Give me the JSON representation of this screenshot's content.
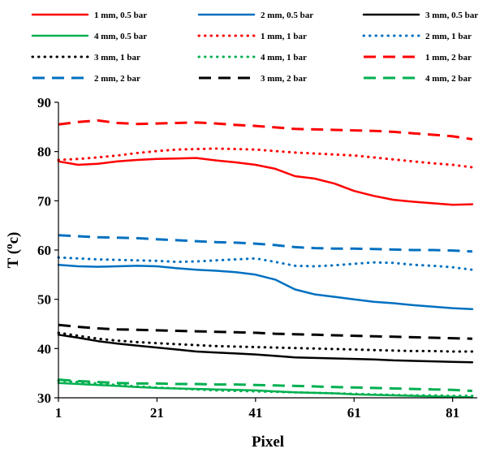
{
  "chart_data": {
    "type": "line",
    "title": "",
    "xlabel": "Pixel",
    "ylabel": "T (°c)",
    "ylabel_parts": {
      "prefix": "T (",
      "sup": "o",
      "suffix": "c)"
    },
    "xlim": [
      1,
      86
    ],
    "ylim": [
      30,
      90
    ],
    "xticks": [
      1,
      21,
      41,
      61,
      81
    ],
    "yticks": [
      30,
      40,
      50,
      60,
      70,
      80,
      90
    ],
    "legend_placement": "top",
    "grid": false,
    "series": [
      {
        "name": "1 mm, 0.5 bar",
        "color": "#ff0000",
        "style": "solid",
        "x": [
          1,
          5,
          9,
          13,
          17,
          21,
          25,
          29,
          33,
          37,
          41,
          45,
          49,
          53,
          57,
          61,
          65,
          69,
          73,
          77,
          81,
          85
        ],
        "y": [
          78,
          77.3,
          77.5,
          78,
          78.3,
          78.5,
          78.6,
          78.7,
          78.2,
          77.8,
          77.3,
          76.5,
          75,
          74.5,
          73.5,
          72,
          71,
          70.2,
          69.8,
          69.5,
          69.2,
          69.3
        ]
      },
      {
        "name": "2 mm, 0.5 bar",
        "color": "#0070c0",
        "style": "solid",
        "x": [
          1,
          5,
          9,
          13,
          17,
          21,
          25,
          29,
          33,
          37,
          41,
          45,
          49,
          53,
          57,
          61,
          65,
          69,
          73,
          77,
          81,
          85
        ],
        "y": [
          57,
          56.7,
          56.6,
          56.7,
          56.8,
          56.7,
          56.3,
          56,
          55.8,
          55.5,
          55,
          54,
          52,
          51,
          50.5,
          50,
          49.5,
          49.2,
          48.8,
          48.5,
          48.2,
          48
        ]
      },
      {
        "name": "3 mm, 0.5 bar",
        "color": "#000000",
        "style": "solid",
        "x": [
          1,
          5,
          9,
          13,
          17,
          21,
          25,
          29,
          33,
          37,
          41,
          45,
          49,
          53,
          57,
          61,
          65,
          69,
          73,
          77,
          81,
          85
        ],
        "y": [
          42.8,
          42.2,
          41.5,
          41,
          40.6,
          40.2,
          39.8,
          39.4,
          39.2,
          39,
          38.8,
          38.5,
          38.2,
          38.1,
          38,
          37.9,
          37.8,
          37.6,
          37.5,
          37.4,
          37.3,
          37.2
        ]
      },
      {
        "name": "4 mm, 0.5 bar",
        "color": "#00b050",
        "style": "solid",
        "x": [
          1,
          5,
          9,
          13,
          17,
          21,
          25,
          29,
          33,
          37,
          41,
          45,
          49,
          53,
          57,
          61,
          65,
          69,
          73,
          77,
          81,
          85
        ],
        "y": [
          33,
          32.8,
          32.6,
          32.4,
          32.2,
          32,
          31.9,
          31.8,
          31.7,
          31.6,
          31.5,
          31.3,
          31.1,
          31,
          30.9,
          30.7,
          30.6,
          30.5,
          30.4,
          30.3,
          30.2,
          30.1
        ]
      },
      {
        "name": "1 mm, 1 bar",
        "color": "#ff0000",
        "style": "dotted",
        "x": [
          1,
          5,
          9,
          13,
          17,
          21,
          25,
          29,
          33,
          37,
          41,
          45,
          49,
          53,
          57,
          61,
          65,
          69,
          73,
          77,
          81,
          85
        ],
        "y": [
          78.3,
          78.5,
          78.8,
          79.2,
          79.7,
          80.1,
          80.4,
          80.5,
          80.6,
          80.5,
          80.4,
          80.1,
          79.8,
          79.6,
          79.4,
          79.2,
          78.8,
          78.4,
          78,
          77.6,
          77.3,
          76.8
        ]
      },
      {
        "name": "2 mm, 1 bar",
        "color": "#0070c0",
        "style": "dotted",
        "x": [
          1,
          5,
          9,
          13,
          17,
          21,
          25,
          29,
          33,
          37,
          41,
          45,
          49,
          53,
          57,
          61,
          65,
          69,
          73,
          77,
          81,
          85
        ],
        "y": [
          58.5,
          58.3,
          58.1,
          58,
          57.9,
          57.8,
          57.6,
          57.7,
          57.9,
          58.1,
          58.3,
          57.6,
          56.8,
          56.7,
          56.9,
          57.2,
          57.5,
          57.4,
          57,
          56.8,
          56.5,
          56
        ]
      },
      {
        "name": "3 mm, 1 bar",
        "color": "#000000",
        "style": "dotted",
        "x": [
          1,
          5,
          9,
          13,
          17,
          21,
          25,
          29,
          33,
          37,
          41,
          45,
          49,
          53,
          57,
          61,
          65,
          69,
          73,
          77,
          81,
          85
        ],
        "y": [
          43.2,
          42.6,
          42,
          41.6,
          41.3,
          41.1,
          40.9,
          40.7,
          40.5,
          40.4,
          40.3,
          40.2,
          40.1,
          40,
          39.9,
          39.8,
          39.7,
          39.6,
          39.5,
          39.5,
          39.4,
          39.4
        ]
      },
      {
        "name": "4 mm, 1 bar",
        "color": "#00b050",
        "style": "dotted",
        "x": [
          1,
          5,
          9,
          13,
          17,
          21,
          25,
          29,
          33,
          37,
          41,
          45,
          49,
          53,
          57,
          61,
          65,
          69,
          73,
          77,
          81,
          85
        ],
        "y": [
          33.5,
          33.2,
          32.9,
          32.6,
          32.3,
          32.1,
          31.9,
          31.7,
          31.5,
          31.4,
          31.3,
          31.2,
          31.1,
          31,
          30.9,
          30.8,
          30.7,
          30.6,
          30.5,
          30.5,
          30.4,
          30.4
        ]
      },
      {
        "name": "1 mm, 2 bar",
        "color": "#ff0000",
        "style": "dashed",
        "x": [
          1,
          5,
          9,
          13,
          17,
          21,
          25,
          29,
          33,
          37,
          41,
          45,
          49,
          53,
          57,
          61,
          65,
          69,
          73,
          77,
          81,
          85
        ],
        "y": [
          85.5,
          86,
          86.3,
          85.8,
          85.6,
          85.7,
          85.8,
          85.9,
          85.7,
          85.4,
          85.2,
          84.9,
          84.6,
          84.5,
          84.4,
          84.3,
          84.2,
          84,
          83.7,
          83.4,
          83.1,
          82.5
        ]
      },
      {
        "name": "2 mm, 2 bar",
        "color": "#0070c0",
        "style": "dashed",
        "x": [
          1,
          5,
          9,
          13,
          17,
          21,
          25,
          29,
          33,
          37,
          41,
          45,
          49,
          53,
          57,
          61,
          65,
          69,
          73,
          77,
          81,
          85
        ],
        "y": [
          63,
          62.8,
          62.6,
          62.5,
          62.4,
          62.2,
          62,
          61.8,
          61.6,
          61.5,
          61.3,
          61,
          60.6,
          60.4,
          60.3,
          60.3,
          60.2,
          60.1,
          60,
          60,
          59.9,
          59.7
        ]
      },
      {
        "name": "3 mm, 2 bar",
        "color": "#000000",
        "style": "dashed",
        "x": [
          1,
          5,
          9,
          13,
          17,
          21,
          25,
          29,
          33,
          37,
          41,
          45,
          49,
          53,
          57,
          61,
          65,
          69,
          73,
          77,
          81,
          85
        ],
        "y": [
          44.8,
          44.4,
          44.1,
          43.9,
          43.8,
          43.7,
          43.6,
          43.5,
          43.4,
          43.3,
          43.2,
          43,
          42.9,
          42.8,
          42.7,
          42.6,
          42.5,
          42.4,
          42.3,
          42.2,
          42.1,
          42
        ]
      },
      {
        "name": "4 mm, 2 bar",
        "color": "#00b050",
        "style": "dashed",
        "x": [
          1,
          5,
          9,
          13,
          17,
          21,
          25,
          29,
          33,
          37,
          41,
          45,
          49,
          53,
          57,
          61,
          65,
          69,
          73,
          77,
          81,
          85
        ],
        "y": [
          33.7,
          33.4,
          33.2,
          33,
          32.9,
          32.9,
          32.8,
          32.8,
          32.7,
          32.7,
          32.6,
          32.5,
          32.4,
          32.3,
          32.2,
          32.1,
          32,
          31.9,
          31.8,
          31.7,
          31.6,
          31.4
        ]
      }
    ]
  }
}
